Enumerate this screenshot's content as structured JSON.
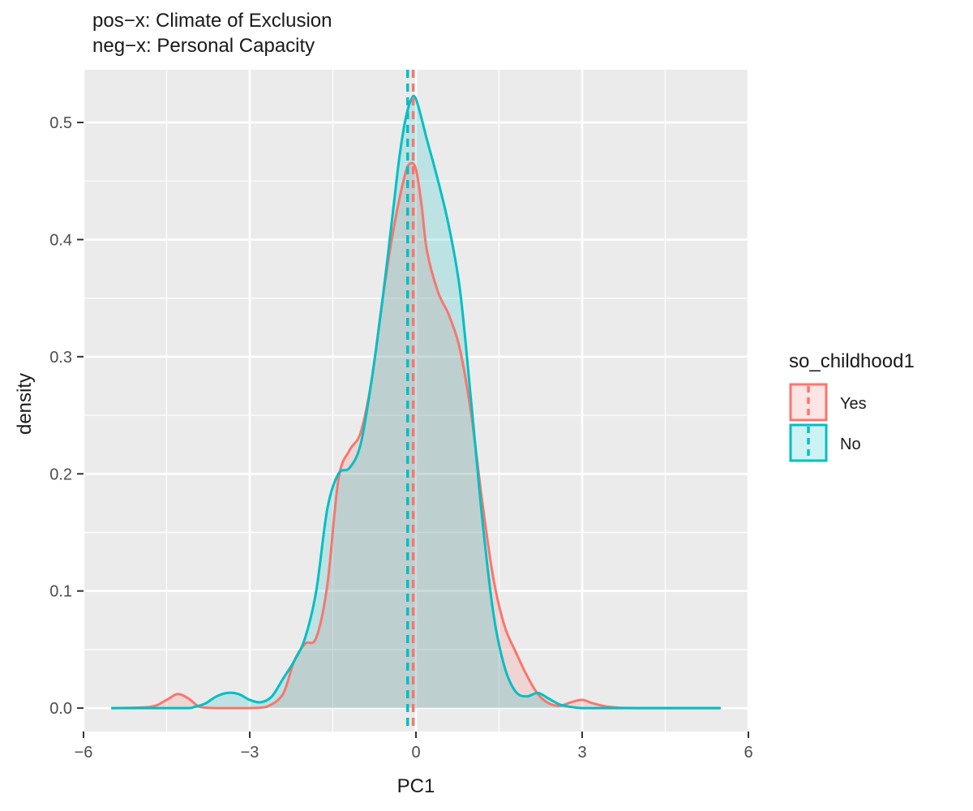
{
  "chart_data": {
    "type": "area",
    "title_lines": [
      "pos−x: Climate of Exclusion",
      "neg−x: Personal Capacity"
    ],
    "xlabel": "PC1",
    "ylabel": "density",
    "xlim": [
      -6,
      6
    ],
    "ylim": [
      -0.02,
      0.545
    ],
    "x_ticks": [
      -6,
      -3,
      0,
      3,
      6
    ],
    "x_tick_labels": [
      "−6",
      "−3",
      "0",
      "3",
      "6"
    ],
    "y_ticks": [
      0.0,
      0.1,
      0.2,
      0.3,
      0.4,
      0.5
    ],
    "y_tick_labels": [
      "0.0",
      "0.1",
      "0.2",
      "0.3",
      "0.4",
      "0.5"
    ],
    "grid": true,
    "legend": {
      "title": "so_childhood1",
      "placement": "right",
      "entries": [
        "Yes",
        "No"
      ]
    },
    "series": [
      {
        "name": "Yes",
        "color": "#F8766D",
        "mean": -0.05,
        "x": [
          -5.5,
          -4.8,
          -4.5,
          -4.3,
          -4.1,
          -3.9,
          -3.6,
          -3.3,
          -3.0,
          -2.7,
          -2.4,
          -2.2,
          -2.0,
          -1.8,
          -1.6,
          -1.4,
          -1.2,
          -1.0,
          -0.8,
          -0.6,
          -0.4,
          -0.2,
          -0.1,
          0.0,
          0.1,
          0.2,
          0.4,
          0.6,
          0.8,
          1.0,
          1.2,
          1.4,
          1.6,
          1.8,
          2.0,
          2.2,
          2.4,
          2.6,
          2.8,
          3.0,
          3.2,
          3.5,
          4.0,
          5.5
        ],
        "y": [
          0.0,
          0.001,
          0.007,
          0.012,
          0.008,
          0.001,
          0.0,
          0.0,
          0.0,
          0.001,
          0.012,
          0.04,
          0.055,
          0.06,
          0.105,
          0.195,
          0.22,
          0.235,
          0.28,
          0.35,
          0.41,
          0.455,
          0.465,
          0.46,
          0.43,
          0.39,
          0.355,
          0.335,
          0.305,
          0.25,
          0.175,
          0.11,
          0.07,
          0.048,
          0.028,
          0.012,
          0.004,
          0.002,
          0.005,
          0.007,
          0.004,
          0.001,
          0.0,
          0.0
        ]
      },
      {
        "name": "No",
        "color": "#00BFC4",
        "mean": -0.15,
        "x": [
          -5.5,
          -4.2,
          -4.0,
          -3.8,
          -3.6,
          -3.4,
          -3.2,
          -3.0,
          -2.8,
          -2.6,
          -2.4,
          -2.2,
          -2.0,
          -1.8,
          -1.6,
          -1.4,
          -1.2,
          -1.0,
          -0.8,
          -0.6,
          -0.4,
          -0.3,
          -0.2,
          -0.1,
          0.0,
          0.2,
          0.4,
          0.6,
          0.8,
          1.0,
          1.2,
          1.4,
          1.6,
          1.8,
          2.0,
          2.2,
          2.4,
          2.6,
          2.8,
          3.0,
          3.5,
          5.5
        ],
        "y": [
          0.0,
          0.0,
          0.001,
          0.004,
          0.01,
          0.013,
          0.012,
          0.007,
          0.005,
          0.01,
          0.025,
          0.04,
          0.06,
          0.1,
          0.17,
          0.2,
          0.205,
          0.225,
          0.28,
          0.35,
          0.43,
          0.47,
          0.5,
          0.518,
          0.52,
          0.485,
          0.45,
          0.41,
          0.355,
          0.26,
          0.16,
          0.08,
          0.035,
          0.014,
          0.01,
          0.013,
          0.008,
          0.003,
          0.001,
          0.0,
          0.0,
          0.0
        ]
      }
    ]
  }
}
